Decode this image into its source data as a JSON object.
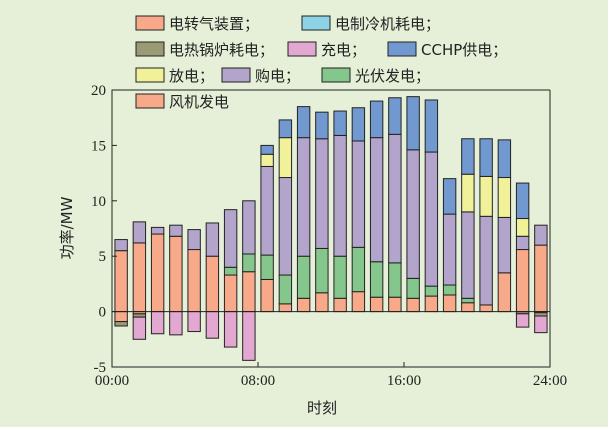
{
  "chart_data": {
    "type": "bar",
    "stacked": true,
    "xlabel": "时刻",
    "ylabel": "功率/MW",
    "ylim": [
      -5,
      20
    ],
    "yticks": [
      -5,
      0,
      5,
      10,
      15,
      20
    ],
    "xticks": [
      {
        "hour": 0,
        "label": "00:00"
      },
      {
        "hour": 8,
        "label": "08:00"
      },
      {
        "hour": 16,
        "label": "16:00"
      },
      {
        "hour": 24,
        "label": "24:00"
      }
    ],
    "legend": {
      "placement": "top-left",
      "rows": [
        [
          "电转气装置；",
          "电制冷机耗电；"
        ],
        [
          "电热锅炉耗电；",
          "充电；",
          "CCHP供电；"
        ],
        [
          "放电；",
          "购电；",
          "光伏发电；"
        ],
        [
          "风机发电"
        ]
      ]
    },
    "hours": [
      0.5,
      1.5,
      2.5,
      3.5,
      4.5,
      5.5,
      6.5,
      7.5,
      8.5,
      9.5,
      10.5,
      11.5,
      12.5,
      13.5,
      14.5,
      15.5,
      16.5,
      17.5,
      18.5,
      19.5,
      20.5,
      21.5,
      22.5,
      23.5
    ],
    "series": [
      {
        "name": "风机发电",
        "color": "#f7a98a",
        "values": [
          5.5,
          6.2,
          7.0,
          6.8,
          5.6,
          5.0,
          3.3,
          3.6,
          2.9,
          0.7,
          1.2,
          1.7,
          1.2,
          1.8,
          1.3,
          1.3,
          1.2,
          1.4,
          1.5,
          0.8,
          0.6,
          3.5,
          5.6,
          6.0
        ]
      },
      {
        "name": "光伏发电",
        "color": "#84c68b",
        "values": [
          0,
          0,
          0,
          0,
          0,
          0,
          0.7,
          1.6,
          2.2,
          2.6,
          3.8,
          4.0,
          3.8,
          4.0,
          3.2,
          3.1,
          1.8,
          0.9,
          0.9,
          0.4,
          0,
          0,
          0,
          0
        ]
      },
      {
        "name": "购电",
        "color": "#b3a4cc",
        "values": [
          1.0,
          1.9,
          0.6,
          1.0,
          1.8,
          3.0,
          5.2,
          4.8,
          8.0,
          8.8,
          10.7,
          9.9,
          10.9,
          9.6,
          11.2,
          11.6,
          11.6,
          12.1,
          6.4,
          7.8,
          8.0,
          5.0,
          1.2,
          1.8
        ]
      },
      {
        "name": "放电",
        "color": "#f1f19a",
        "values": [
          0,
          0,
          0,
          0,
          0,
          0,
          0,
          0,
          1.1,
          3.6,
          0,
          0,
          0,
          0,
          0,
          0,
          0,
          0,
          0,
          3.4,
          3.6,
          3.6,
          1.6,
          0
        ]
      },
      {
        "name": "CCHP供电",
        "color": "#7199d0",
        "values": [
          0,
          0,
          0,
          0,
          0,
          0,
          0,
          0,
          0.8,
          1.6,
          2.8,
          2.4,
          2.2,
          3.0,
          3.3,
          3.3,
          4.8,
          4.7,
          3.2,
          3.2,
          3.4,
          3.4,
          3.2,
          0
        ]
      },
      {
        "name": "电转气装置",
        "color": "#f7a98a",
        "values": [
          -0.9,
          -0.2,
          0,
          0,
          0,
          0,
          0,
          0,
          0,
          0,
          0,
          0,
          0,
          0,
          0,
          0,
          0,
          0,
          0,
          0,
          0,
          0,
          0,
          -0.1
        ]
      },
      {
        "name": "电制冷机耗电",
        "color": "#8dd3e6",
        "values": [
          0,
          0,
          0,
          0,
          0,
          0,
          0,
          0,
          0,
          0,
          0,
          0,
          0,
          0,
          0,
          0,
          0,
          0,
          0,
          0,
          0,
          0,
          0,
          0
        ]
      },
      {
        "name": "电热锅炉耗电",
        "color": "#9a9a74",
        "values": [
          -0.4,
          -0.3,
          0,
          0,
          0,
          0,
          0,
          0,
          0,
          0,
          0,
          0,
          0,
          0,
          0,
          0,
          0,
          0,
          0,
          0,
          0,
          0,
          -0.2,
          -0.3
        ]
      },
      {
        "name": "充电",
        "color": "#e3a8d2",
        "values": [
          0,
          -2.0,
          -2.0,
          -2.1,
          -1.8,
          -2.4,
          -3.2,
          -4.4,
          0,
          0,
          0,
          0,
          0,
          0,
          0,
          0,
          0,
          0,
          0,
          0,
          0,
          0,
          -1.2,
          -1.5
        ]
      }
    ]
  }
}
